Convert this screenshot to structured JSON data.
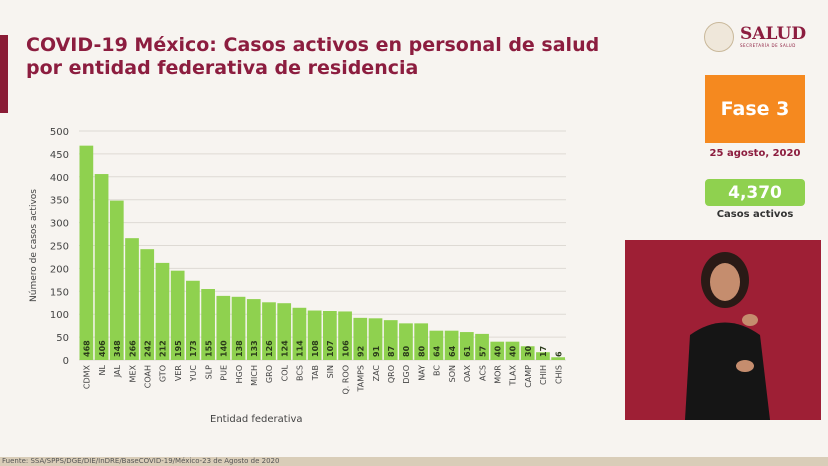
{
  "header": {
    "title": "COVID-19 México: Casos activos en personal de salud por entidad federativa de residencia"
  },
  "logo": {
    "name": "SALUD",
    "subtitle": "SECRETARÍA DE SALUD"
  },
  "status": {
    "phase": "Fase 3",
    "date": "25 agosto, 2020",
    "active_cases": "4,370",
    "active_label": "Casos activos",
    "phase_color": "#f5891f",
    "cases_color": "#8fd14f"
  },
  "footer": {
    "source": "Fuente: SSA/SPPS/DGE/DIE/InDRE/BaseCOVID-19/México-23 de Agosto de 2020"
  },
  "chart_data": {
    "type": "bar",
    "title": "",
    "xlabel": "Entidad federativa",
    "ylabel": "Número de casos activos",
    "ylim": [
      0,
      500
    ],
    "yticks": [
      0,
      50,
      100,
      150,
      200,
      250,
      300,
      350,
      400,
      450,
      500
    ],
    "grid": true,
    "bar_color": "#8fd14f",
    "categories": [
      "CDMX",
      "NL",
      "JAL",
      "MEX",
      "COAH",
      "GTO",
      "VER",
      "YUC",
      "SLP",
      "PUE",
      "HGO",
      "MICH",
      "GRO",
      "COL",
      "BCS",
      "TAB",
      "SIN",
      "Q. ROO",
      "TAMPS",
      "ZAC",
      "QRO",
      "DGO",
      "NAY",
      "BC",
      "SON",
      "OAX",
      "ACS",
      "MOR",
      "TLAX",
      "CAMP",
      "CHIH",
      "CHIS"
    ],
    "values": [
      468,
      406,
      348,
      266,
      242,
      212,
      195,
      173,
      155,
      140,
      138,
      133,
      126,
      124,
      114,
      108,
      107,
      106,
      92,
      91,
      87,
      80,
      80,
      64,
      64,
      61,
      57,
      40,
      40,
      30,
      17,
      6
    ]
  }
}
